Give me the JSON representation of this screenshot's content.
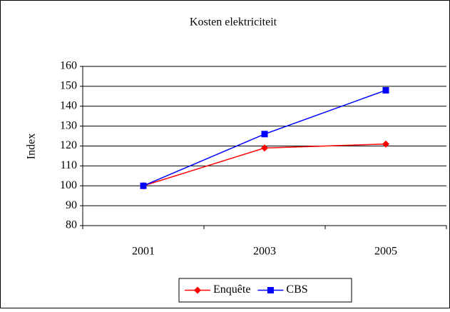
{
  "chart_data": {
    "type": "line",
    "title": "Kosten elektriciteit",
    "y_label": "Index",
    "categories": [
      "2001",
      "2003",
      "2005"
    ],
    "series": [
      {
        "name": "Enquête",
        "color": "#ff0000",
        "marker": "diamond",
        "values": [
          100,
          119,
          121
        ]
      },
      {
        "name": "CBS",
        "color": "#0000ff",
        "marker": "square",
        "values": [
          100,
          126,
          148
        ]
      }
    ],
    "ylim": [
      80,
      160
    ],
    "yticks": [
      80,
      90,
      100,
      110,
      120,
      130,
      140,
      150,
      160
    ],
    "grid": true,
    "legend": "bottom"
  }
}
